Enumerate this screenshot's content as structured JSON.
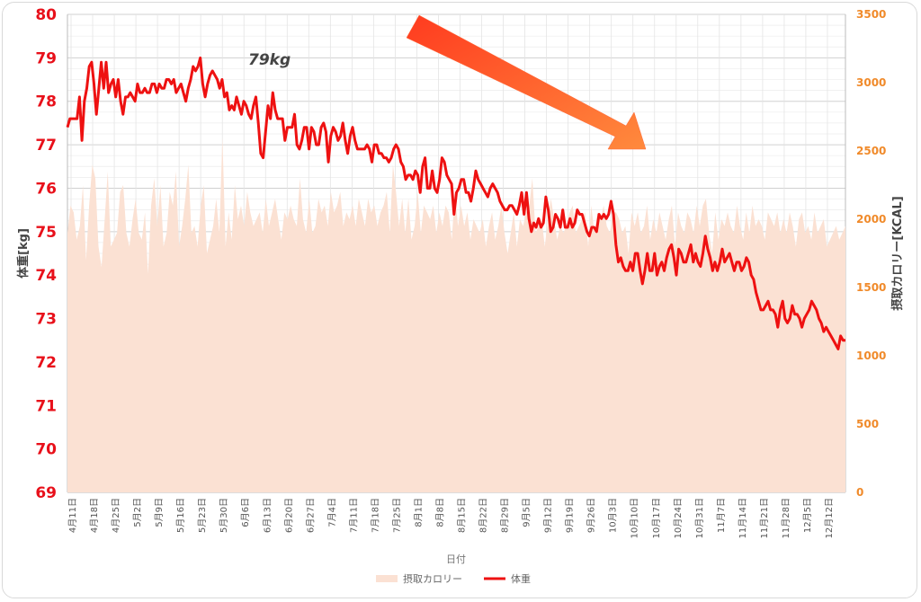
{
  "chart_data": {
    "type": "line",
    "title": "",
    "xlabel": "日付",
    "ylabel_left": "体重[kg]",
    "ylabel_right": "摂取カロリー[KCAL]",
    "y_left_range": [
      69,
      80
    ],
    "y_left_ticks": [
      "69",
      "70",
      "71",
      "72",
      "73",
      "74",
      "75",
      "76",
      "77",
      "78",
      "79",
      "80"
    ],
    "y_right_range": [
      0,
      3500
    ],
    "y_right_ticks": [
      "0",
      "500",
      "1000",
      "1500",
      "2000",
      "2500",
      "3000",
      "3500"
    ],
    "x_tick_labels": [
      "4月11日",
      "4月18日",
      "4月25日",
      "5月2日",
      "5月9日",
      "5月16日",
      "5月23日",
      "5月30日",
      "6月6日",
      "6月13日",
      "6月20日",
      "6月27日",
      "7月4日",
      "7月11日",
      "7月18日",
      "7月25日",
      "8月1日",
      "8月8日",
      "8月15日",
      "8月22日",
      "8月29日",
      "9月5日",
      "9月12日",
      "9月19日",
      "9月26日",
      "10月3日",
      "10月10日",
      "10月17日",
      "10月24日",
      "10月31日",
      "11月7日",
      "11月14日",
      "11月21日",
      "11月28日",
      "12月5日",
      "12月12日"
    ],
    "grid": true,
    "legend_position": "bottom",
    "annotation": "79kg",
    "series": [
      {
        "name": "摂取カロリー",
        "type": "area",
        "axis": "right",
        "color": "#fbe1d3",
        "values": [
          1900,
          2100,
          2050,
          1850,
          1950,
          2250,
          1700,
          2100,
          2400,
          2300,
          1800,
          1650,
          2000,
          2350,
          1800,
          1850,
          1900,
          2200,
          2250,
          1900,
          1800,
          2000,
          2150,
          1900,
          1850,
          2050,
          1600,
          2100,
          2300,
          1950,
          2250,
          1800,
          1900,
          2200,
          2100,
          2350,
          1800,
          1950,
          2150,
          2400,
          1900,
          1950,
          1800,
          2100,
          2250,
          1750,
          1850,
          1950,
          2150,
          1900,
          2600,
          1800,
          2050,
          1850,
          2250,
          2000,
          2100,
          1950,
          2200,
          2050,
          1950,
          2000,
          2050,
          1900,
          2150,
          1950,
          2050,
          2150,
          2000,
          1850,
          2050,
          2000,
          2100,
          2000,
          1950,
          2300,
          2000,
          1900,
          2150,
          1900,
          1950,
          2150,
          2050,
          2100,
          1950,
          2200,
          2050,
          2100,
          2200,
          1950,
          2050,
          2000,
          2100,
          1950,
          2150,
          2050,
          1950,
          2150,
          2050,
          2100,
          1950,
          2050,
          2100,
          2200,
          1900,
          2400,
          2200,
          1950,
          2150,
          1900,
          2150,
          1850,
          1950,
          2200,
          1900,
          2100,
          2050,
          2000,
          2100,
          1900,
          2050,
          1950,
          2100,
          2050,
          1850,
          2200,
          1950,
          2100,
          1950,
          2050,
          1850,
          2000,
          1950,
          1900,
          2000,
          1800,
          1950,
          2050,
          1850,
          1950,
          2100,
          1900,
          1750,
          1900,
          2050,
          1800,
          2000,
          1950,
          2050,
          2100,
          2300,
          1900,
          1950,
          2000,
          1800,
          2000,
          2150,
          2000,
          1850,
          1950,
          1900,
          1950,
          2050,
          2100,
          1900,
          1950,
          2000,
          2050,
          1800,
          2100,
          1900,
          2050,
          2000,
          2100,
          1950,
          1900,
          2050,
          2050,
          2000,
          1900,
          1950,
          1750,
          2050,
          1950,
          2050,
          1900,
          1950,
          2100,
          1850,
          2000,
          1900,
          2050,
          1950,
          1850,
          2000,
          2100,
          1800,
          2050,
          1950,
          1900,
          2050,
          2000,
          1900,
          2100,
          1950,
          2100,
          2150,
          1900,
          1750,
          2050,
          1850,
          2000,
          1950,
          2050,
          1950,
          1900,
          2100,
          1950,
          1850,
          2050,
          1900,
          2100,
          1950,
          2000,
          1950,
          1850,
          2050,
          2000,
          1950,
          2050,
          1900,
          2000,
          1900,
          2050,
          1950,
          1800,
          2000,
          2050,
          1900,
          1950,
          1850,
          2050,
          1900,
          1950,
          2000,
          1800,
          1850,
          1900,
          1950,
          1850,
          1900,
          1950
        ]
      },
      {
        "name": "体重",
        "type": "line",
        "axis": "left",
        "color": "#ee1111",
        "values": [
          77.4,
          77.6,
          77.6,
          77.6,
          77.6,
          78.1,
          77.1,
          78.0,
          78.3,
          78.8,
          78.9,
          78.4,
          77.7,
          78.3,
          78.9,
          78.3,
          78.9,
          78.2,
          78.4,
          78.5,
          78.1,
          78.5,
          78.0,
          77.7,
          78.1,
          78.1,
          78.2,
          78.1,
          78.0,
          78.4,
          78.2,
          78.2,
          78.3,
          78.2,
          78.2,
          78.4,
          78.4,
          78.2,
          78.4,
          78.3,
          78.3,
          78.5,
          78.5,
          78.4,
          78.5,
          78.2,
          78.3,
          78.4,
          78.2,
          78.0,
          78.3,
          78.5,
          78.8,
          78.7,
          78.8,
          79.0,
          78.4,
          78.1,
          78.4,
          78.6,
          78.7,
          78.6,
          78.5,
          78.3,
          78.5,
          78.1,
          78.2,
          77.8,
          77.9,
          77.8,
          78.1,
          77.9,
          77.7,
          78.0,
          77.9,
          77.7,
          77.6,
          77.9,
          78.1,
          77.5,
          76.8,
          76.7,
          77.3,
          77.9,
          77.6,
          78.2,
          77.8,
          77.6,
          77.6,
          77.6,
          77.1,
          77.4,
          77.4,
          77.4,
          77.7,
          77.0,
          76.9,
          77.1,
          77.4,
          77.4,
          76.9,
          77.4,
          77.3,
          77.0,
          77.0,
          77.4,
          77.5,
          77.3,
          76.6,
          77.2,
          77.4,
          77.3,
          77.1,
          77.2,
          77.5,
          77.1,
          76.8,
          77.2,
          77.4,
          77.1,
          76.9,
          76.9,
          76.9,
          76.9,
          77.0,
          76.9,
          76.6,
          77.0,
          77.0,
          76.8,
          76.8,
          76.7,
          76.7,
          76.6,
          76.7,
          76.9,
          77.0,
          76.9,
          76.6,
          76.5,
          76.2,
          76.3,
          76.3,
          76.2,
          76.4,
          76.3,
          75.9,
          76.5,
          76.7,
          76.0,
          76.0,
          76.4,
          76.0,
          75.9,
          76.2,
          76.7,
          76.6,
          76.3,
          76.2,
          76.1,
          75.4,
          75.9,
          76.0,
          76.2,
          76.2,
          75.9,
          75.9,
          75.7,
          76.0,
          76.4,
          76.2,
          76.1,
          76.0,
          75.9,
          75.8,
          76.0,
          76.1,
          76.0,
          75.9,
          75.7,
          75.6,
          75.5,
          75.5,
          75.6,
          75.6,
          75.5,
          75.4,
          75.6,
          75.9,
          75.4,
          75.9,
          75.3,
          75.0,
          75.2,
          75.1,
          75.3,
          75.1,
          75.2,
          75.8,
          75.5,
          75.0,
          75.1,
          75.4,
          75.3,
          75.1,
          75.5,
          75.1,
          75.1,
          75.3,
          75.1,
          75.2,
          75.5,
          75.4,
          75.4,
          75.2,
          75.0,
          74.9,
          75.1,
          75.1,
          75.0,
          75.4,
          75.3,
          75.4,
          75.3,
          75.4,
          75.7,
          75.4,
          74.7,
          74.3,
          74.4,
          74.2,
          74.1,
          74.1,
          74.3,
          74.1,
          74.5,
          74.5,
          74.1,
          73.8,
          74.1,
          74.5,
          74.1,
          74.1,
          74.5,
          74.0,
          74.2,
          74.3,
          74.1,
          74.4,
          74.6,
          74.7,
          74.4,
          74.0,
          74.6,
          74.5,
          74.3,
          74.3,
          74.5,
          74.7,
          74.3,
          74.5,
          74.3,
          74.2,
          74.5,
          74.9,
          74.6,
          74.4,
          74.1,
          74.3,
          74.1,
          74.3,
          74.6,
          74.3,
          74.4,
          74.5,
          74.3,
          74.1,
          74.3,
          74.3,
          74.1,
          74.2,
          74.4,
          74.3,
          74.0,
          73.9,
          73.6,
          73.4,
          73.2,
          73.2,
          73.3,
          73.4,
          73.2,
          73.2,
          73.1,
          72.8,
          73.2,
          73.4,
          73.0,
          72.9,
          73.0,
          73.3,
          73.1,
          73.1,
          73.0,
          72.8,
          73.0,
          73.1,
          73.2,
          73.4,
          73.3,
          73.2,
          73.0,
          72.9,
          72.7,
          72.8,
          72.7,
          72.6,
          72.5,
          72.4,
          72.3,
          72.6,
          72.5,
          72.5
        ]
      }
    ]
  },
  "legend": {
    "items": [
      {
        "label": "摂取カロリー",
        "color": "#fbe1d3"
      },
      {
        "label": "体重",
        "color": "#ee1111"
      }
    ]
  }
}
